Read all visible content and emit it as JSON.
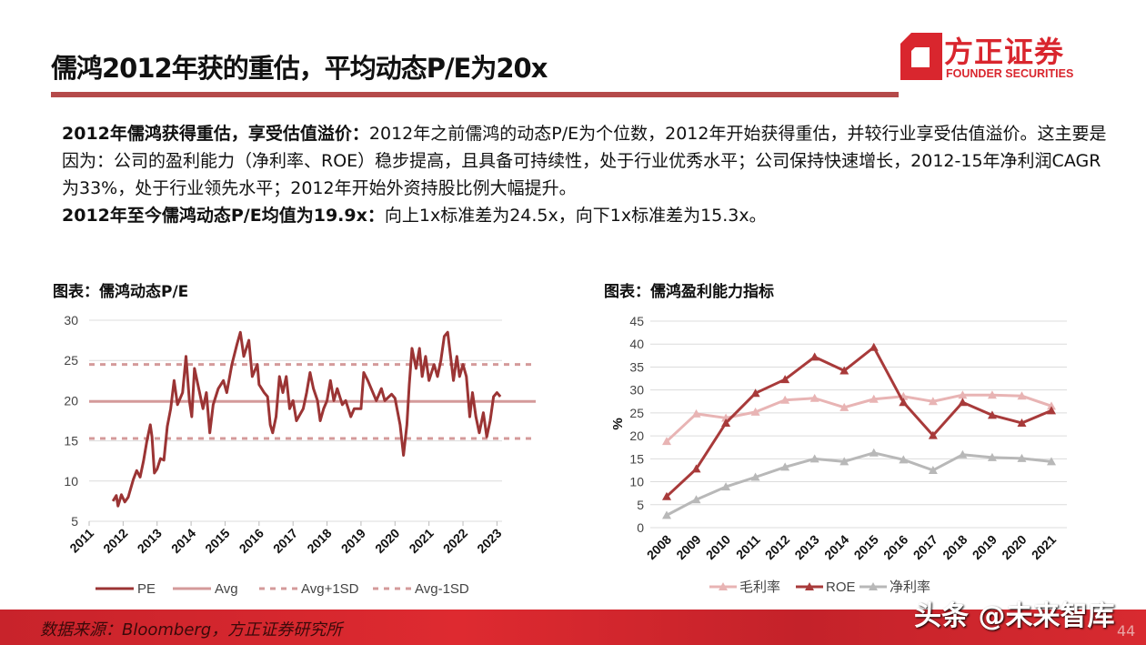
{
  "header": {
    "title": "儒鸿2012年获的重估，平均动态P/E为20x",
    "logo_cn": "方正证券",
    "logo_en": "FOUNDER SECURITIES"
  },
  "body": {
    "p1_bold": "2012年儒鸿获得重估，享受估值溢价：",
    "p1_text": "2012年之前儒鸿的动态P/E为个位数，2012年开始获得重估，并较行业享受估值溢价。这主要是因为：公司的盈利能力（净利率、ROE）稳步提高，且具备可持续性，处于行业优秀水平；公司保持快速增长，2012-15年净利润CAGR为33%，处于行业领先水平；2012年开始外资持股比例大幅提升。",
    "p2_bold": "2012年至今儒鸿动态P/E均值为19.9x：",
    "p2_text": "向上1x标准差为24.5x，向下1x标准差为15.3x。"
  },
  "footer": {
    "source": "数据来源：Bloomberg，方正证券研究所",
    "watermark": "头条 @未来智库",
    "page_number": "44"
  },
  "colors": {
    "accent": "#d9262e",
    "pe": "#9b3434",
    "avg": "#d49a9a",
    "gross": "#e8b4b4",
    "roe": "#a83a3a",
    "net": "#b8b8b8"
  },
  "chart_data": [
    {
      "type": "line",
      "title": "图表：儒鸿动态P/E",
      "xlabel": "",
      "ylabel": "",
      "xlim": [
        2011,
        2023.15
      ],
      "ylim": [
        5,
        30
      ],
      "yticks": [
        5,
        10,
        15,
        20,
        25,
        30
      ],
      "xticks": [
        "2011",
        "2012",
        "2013",
        "2014",
        "2015",
        "2016",
        "2017",
        "2018",
        "2019",
        "2020",
        "2021",
        "2022",
        "2023"
      ],
      "grid": true,
      "legend": "bottom",
      "series": [
        {
          "name": "PE",
          "style": "solid",
          "points": [
            [
              2011.7,
              7.5
            ],
            [
              2011.8,
              8.2
            ],
            [
              2011.85,
              6.9
            ],
            [
              2011.95,
              8.3
            ],
            [
              2012.05,
              7.4
            ],
            [
              2012.15,
              8.0
            ],
            [
              2012.3,
              10.2
            ],
            [
              2012.4,
              11.3
            ],
            [
              2012.5,
              10.5
            ],
            [
              2012.6,
              12.5
            ],
            [
              2012.7,
              15
            ],
            [
              2012.8,
              17
            ],
            [
              2012.85,
              15.5
            ],
            [
              2012.92,
              11
            ],
            [
              2013.0,
              11.5
            ],
            [
              2013.1,
              12.8
            ],
            [
              2013.2,
              12.6
            ],
            [
              2013.3,
              16.8
            ],
            [
              2013.4,
              19
            ],
            [
              2013.5,
              22.5
            ],
            [
              2013.6,
              19.5
            ],
            [
              2013.75,
              21
            ],
            [
              2013.85,
              25.5
            ],
            [
              2013.95,
              20
            ],
            [
              2014.02,
              18
            ],
            [
              2014.1,
              24
            ],
            [
              2014.2,
              22
            ],
            [
              2014.35,
              19
            ],
            [
              2014.45,
              21
            ],
            [
              2014.55,
              16
            ],
            [
              2014.65,
              19.5
            ],
            [
              2014.8,
              21.5
            ],
            [
              2014.95,
              22.5
            ],
            [
              2015.05,
              21
            ],
            [
              2015.2,
              24.5
            ],
            [
              2015.35,
              27
            ],
            [
              2015.45,
              28.5
            ],
            [
              2015.55,
              25.5
            ],
            [
              2015.7,
              27.5
            ],
            [
              2015.8,
              23
            ],
            [
              2015.95,
              24.5
            ],
            [
              2016.0,
              22
            ],
            [
              2016.15,
              21
            ],
            [
              2016.25,
              20.5
            ],
            [
              2016.33,
              17
            ],
            [
              2016.4,
              16
            ],
            [
              2016.5,
              18
            ],
            [
              2016.6,
              23
            ],
            [
              2016.7,
              21
            ],
            [
              2016.8,
              23
            ],
            [
              2016.9,
              19
            ],
            [
              2017.0,
              20
            ],
            [
              2017.1,
              17.5
            ],
            [
              2017.3,
              19
            ],
            [
              2017.4,
              21
            ],
            [
              2017.5,
              23.5
            ],
            [
              2017.6,
              21.5
            ],
            [
              2017.72,
              20
            ],
            [
              2017.8,
              17.5
            ],
            [
              2017.9,
              19
            ],
            [
              2018.0,
              20
            ],
            [
              2018.1,
              22.5
            ],
            [
              2018.2,
              20
            ],
            [
              2018.3,
              21.5
            ],
            [
              2018.45,
              19.5
            ],
            [
              2018.55,
              20
            ],
            [
              2018.7,
              18
            ],
            [
              2018.8,
              19
            ],
            [
              2019.0,
              19
            ],
            [
              2019.08,
              23.5
            ],
            [
              2019.2,
              22.5
            ],
            [
              2019.35,
              21
            ],
            [
              2019.45,
              20
            ],
            [
              2019.6,
              21.5
            ],
            [
              2019.7,
              20
            ],
            [
              2019.9,
              20.8
            ],
            [
              2020.0,
              20.3
            ],
            [
              2020.15,
              17
            ],
            [
              2020.25,
              13.2
            ],
            [
              2020.35,
              17
            ],
            [
              2020.42,
              22
            ],
            [
              2020.5,
              26.5
            ],
            [
              2020.62,
              24
            ],
            [
              2020.72,
              26.5
            ],
            [
              2020.8,
              23
            ],
            [
              2020.9,
              25.5
            ],
            [
              2021.0,
              22.5
            ],
            [
              2021.15,
              24.5
            ],
            [
              2021.25,
              23
            ],
            [
              2021.35,
              25
            ],
            [
              2021.45,
              28
            ],
            [
              2021.55,
              28.5
            ],
            [
              2021.65,
              25
            ],
            [
              2021.72,
              22.5
            ],
            [
              2021.82,
              25.5
            ],
            [
              2021.9,
              23
            ],
            [
              2022.0,
              24.5
            ],
            [
              2022.1,
              23
            ],
            [
              2022.2,
              18
            ],
            [
              2022.28,
              21
            ],
            [
              2022.38,
              18
            ],
            [
              2022.48,
              16
            ],
            [
              2022.6,
              18.5
            ],
            [
              2022.7,
              15.5
            ],
            [
              2022.8,
              17.5
            ],
            [
              2022.9,
              20.5
            ],
            [
              2023.0,
              21
            ],
            [
              2023.1,
              20.5
            ]
          ]
        },
        {
          "name": "Avg",
          "style": "solid",
          "value": 19.9
        },
        {
          "name": "Avg+1SD",
          "style": "dashed",
          "value": 24.5
        },
        {
          "name": "Avg-1SD",
          "style": "dashed",
          "value": 15.3
        }
      ]
    },
    {
      "type": "line",
      "title": "图表：儒鸿盈利能力指标",
      "xlabel": "",
      "ylabel": "%",
      "ylim": [
        0,
        45
      ],
      "yticks": [
        0,
        5,
        10,
        15,
        20,
        25,
        30,
        35,
        40,
        45
      ],
      "categories": [
        "2008",
        "2009",
        "2010",
        "2011",
        "2012",
        "2013",
        "2014",
        "2015",
        "2016",
        "2017",
        "2018",
        "2019",
        "2020",
        "2021"
      ],
      "grid": true,
      "legend": "bottom",
      "series": [
        {
          "name": "毛利率",
          "values": [
            18.8,
            24.8,
            23.9,
            25.2,
            27.8,
            28.2,
            26.2,
            28.0,
            28.6,
            27.5,
            28.9,
            28.9,
            28.7,
            26.5
          ]
        },
        {
          "name": "ROE",
          "values": [
            6.8,
            12.8,
            22.8,
            29.3,
            32.3,
            37.2,
            34.2,
            39.3,
            27.3,
            20.1,
            27.3,
            24.5,
            22.8,
            25.5
          ]
        },
        {
          "name": "净利率",
          "values": [
            2.7,
            6.1,
            8.9,
            11.0,
            13.2,
            15.0,
            14.4,
            16.3,
            14.8,
            12.5,
            15.9,
            15.3,
            15.1,
            14.4
          ]
        }
      ]
    }
  ]
}
